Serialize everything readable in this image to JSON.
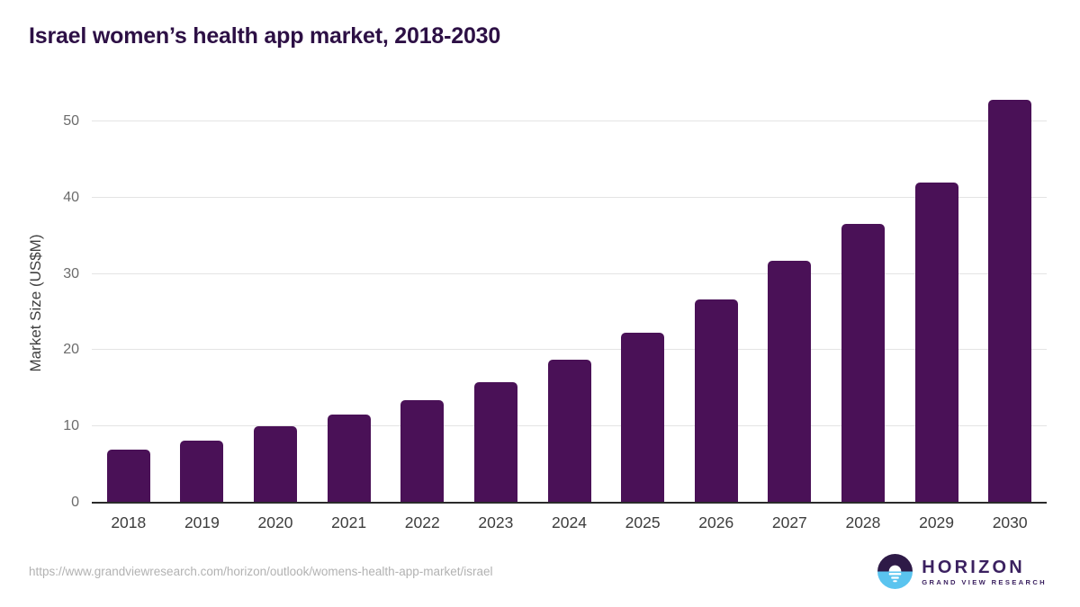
{
  "header": {
    "title": "Israel women’s health app market, 2018-2030"
  },
  "footer": {
    "source_url": "https://www.grandviewresearch.com/horizon/outlook/womens-health-app-market/israel",
    "logo_name": "HORIZON",
    "logo_subtitle": "GRAND VIEW RESEARCH"
  },
  "colors": {
    "bar": "#4a1157",
    "title_text": "#2d1045",
    "axis_text": "#3d3d3d",
    "tick_text": "#6b6b6b",
    "gridline": "#e4e4e4",
    "baseline": "#2b2b2b",
    "url_text": "#b2b2b2",
    "logo_dark": "#2e1a47",
    "logo_blue": "#5ac4ef",
    "logo_text": "#3b2160"
  },
  "chart_data": {
    "type": "bar",
    "title": "Israel women’s health app market, 2018-2030",
    "categories": [
      "2018",
      "2019",
      "2020",
      "2021",
      "2022",
      "2023",
      "2024",
      "2025",
      "2026",
      "2027",
      "2028",
      "2029",
      "2030"
    ],
    "values": [
      7.0,
      8.1,
      10.0,
      11.6,
      13.5,
      15.8,
      18.8,
      22.3,
      26.6,
      31.7,
      36.6,
      42.0,
      52.8
    ],
    "xlabel": "",
    "ylabel": "Market Size (US$M)",
    "yticks": [
      0,
      10,
      20,
      30,
      40,
      50
    ],
    "ylim": [
      0,
      55.3
    ],
    "grid": "horizontal",
    "legend": false,
    "bar_color": "#4a1157"
  }
}
